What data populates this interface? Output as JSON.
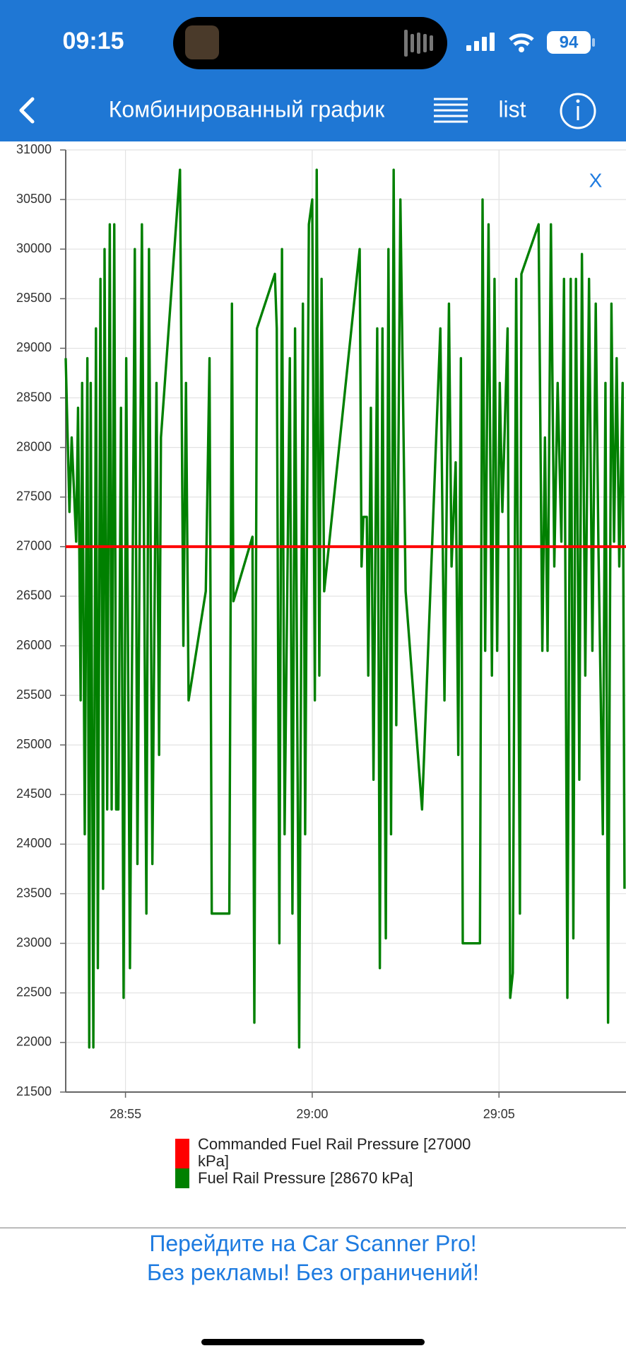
{
  "status_bar": {
    "time": "09:15",
    "battery": "94"
  },
  "nav_bar": {
    "title": "Комбинированный график",
    "list_label": "list"
  },
  "chart_data": {
    "type": "line",
    "close_label": "X",
    "xlim": [
      1733.4,
      1748.4
    ],
    "xticks": [
      {
        "value": 1735,
        "label": "28:55"
      },
      {
        "value": 1740,
        "label": "29:00"
      },
      {
        "value": 1745,
        "label": "29:05"
      }
    ],
    "ylim": [
      21500,
      31000
    ],
    "yticks": [
      21500,
      22000,
      22500,
      23000,
      23500,
      24000,
      24500,
      25000,
      25500,
      26000,
      26500,
      27000,
      27500,
      28000,
      28500,
      29000,
      29500,
      30000,
      30500,
      31000
    ],
    "grid": true,
    "series": [
      {
        "name": "Commanded Fuel Rail Pressure [27000 kPa]",
        "color": "#ff0000",
        "x": [
          1733.4,
          1748.4
        ],
        "values": [
          27000,
          27000
        ]
      },
      {
        "name": "Fuel Rail Pressure [28670 kPa]",
        "color": "#008000",
        "x": [
          1733.4,
          1733.5,
          1733.56,
          1733.68,
          1733.73,
          1733.8,
          1733.84,
          1733.91,
          1733.98,
          1734.03,
          1734.07,
          1734.14,
          1734.21,
          1734.26,
          1734.33,
          1734.4,
          1734.44,
          1734.51,
          1734.58,
          1734.63,
          1734.7,
          1734.75,
          1734.81,
          1734.88,
          1734.95,
          1735.02,
          1735.12,
          1735.25,
          1735.32,
          1735.44,
          1735.56,
          1735.63,
          1735.72,
          1735.83,
          1735.9,
          1735.95,
          1736.46,
          1736.55,
          1736.62,
          1736.69,
          1737.15,
          1737.25,
          1737.31,
          1737.78,
          1737.85,
          1737.89,
          1738.4,
          1738.45,
          1738.52,
          1739.0,
          1739.05,
          1739.12,
          1739.19,
          1739.26,
          1739.4,
          1739.47,
          1739.54,
          1739.65,
          1739.75,
          1739.81,
          1739.91,
          1740.0,
          1740.07,
          1740.12,
          1740.19,
          1740.25,
          1740.32,
          1741.27,
          1741.32,
          1741.37,
          1741.46,
          1741.5,
          1741.57,
          1741.64,
          1741.74,
          1741.81,
          1741.88,
          1741.97,
          1742.04,
          1742.11,
          1742.18,
          1742.25,
          1742.36,
          1742.5,
          1742.94,
          1743.43,
          1743.54,
          1743.66,
          1743.73,
          1743.84,
          1743.91,
          1743.98,
          1744.03,
          1744.49,
          1744.56,
          1744.63,
          1744.72,
          1744.81,
          1744.88,
          1744.95,
          1745.02,
          1745.09,
          1745.23,
          1745.3,
          1745.37,
          1745.46,
          1745.56,
          1745.6,
          1746.06,
          1746.16,
          1746.23,
          1746.3,
          1746.39,
          1746.48,
          1746.57,
          1746.67,
          1746.74,
          1746.83,
          1746.92,
          1746.99,
          1747.06,
          1747.15,
          1747.22,
          1747.31,
          1747.41,
          1747.5,
          1747.59,
          1747.66,
          1747.78,
          1747.85,
          1747.92,
          1748.01,
          1748.08,
          1748.15,
          1748.22,
          1748.31,
          1748.36
        ],
        "values": [
          28900,
          27350,
          28100,
          27050,
          28400,
          25450,
          28650,
          24100,
          28900,
          21950,
          28650,
          21950,
          29200,
          22750,
          29700,
          23550,
          30000,
          24350,
          30250,
          24350,
          30250,
          24350,
          24350,
          28400,
          22450,
          28900,
          22750,
          30000,
          23800,
          30250,
          23300,
          30000,
          23800,
          28650,
          24900,
          28100,
          30800,
          26000,
          28650,
          25450,
          26550,
          28900,
          23300,
          23300,
          29450,
          26450,
          27100,
          22200,
          29200,
          29750,
          29200,
          23000,
          30000,
          24100,
          28900,
          23300,
          29200,
          21950,
          29450,
          24100,
          30250,
          30500,
          25450,
          30800,
          25700,
          29700,
          26550,
          30000,
          26800,
          27300,
          27300,
          25700,
          28400,
          24650,
          29200,
          22750,
          29200,
          23050,
          30000,
          24100,
          30800,
          25200,
          30500,
          26550,
          24350,
          29200,
          25450,
          29450,
          26800,
          27850,
          24900,
          28900,
          23000,
          23000,
          30500,
          25950,
          30250,
          25700,
          29700,
          25950,
          28650,
          27350,
          29200,
          22450,
          22700,
          29700,
          23300,
          29750,
          30250,
          25950,
          28100,
          25950,
          30250,
          26800,
          28650,
          27050,
          29700,
          22450,
          29700,
          23050,
          29700,
          24650,
          29950,
          25700,
          29700,
          25950,
          29450,
          27050,
          24100,
          28650,
          22200,
          29450,
          27050,
          28900,
          26800,
          28650,
          23550
        ]
      }
    ]
  },
  "banner": {
    "lines": [
      "Перейдите на Car Scanner Pro!",
      "Без рекламы! Без ограничений!"
    ]
  }
}
